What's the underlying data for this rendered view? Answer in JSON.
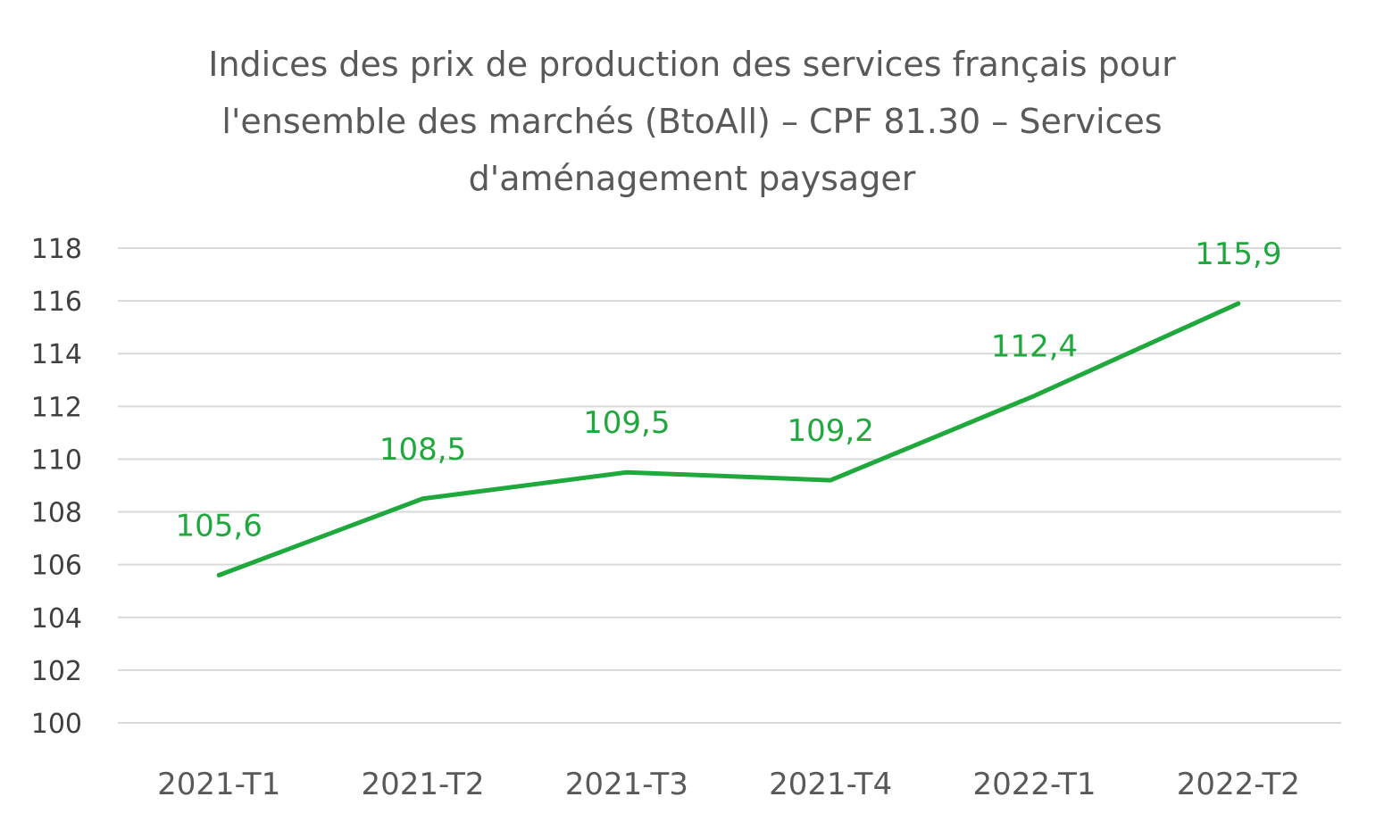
{
  "chart_data": {
    "type": "line",
    "title_lines": [
      "Indices des prix de production des services français pour",
      "l'ensemble des marchés (BtoAll) – CPF 81.30 – Services",
      "d'aménagement paysager"
    ],
    "categories": [
      "2021-T1",
      "2021-T2",
      "2021-T3",
      "2021-T4",
      "2022-T1",
      "2022-T2"
    ],
    "series": [
      {
        "values": [
          105.6,
          108.5,
          109.5,
          109.2,
          112.4,
          115.9
        ],
        "data_labels": [
          "105,6",
          "108,5",
          "109,5",
          "109,2",
          "112,4",
          "115,9"
        ],
        "color": "#1fa83c"
      }
    ],
    "ylim": [
      100,
      118
    ],
    "yticks": [
      100,
      102,
      104,
      106,
      108,
      110,
      112,
      114,
      116,
      118
    ],
    "grid": true,
    "legend": "none",
    "gridline_color": "#d9d9d9",
    "text_color": "#595959"
  }
}
